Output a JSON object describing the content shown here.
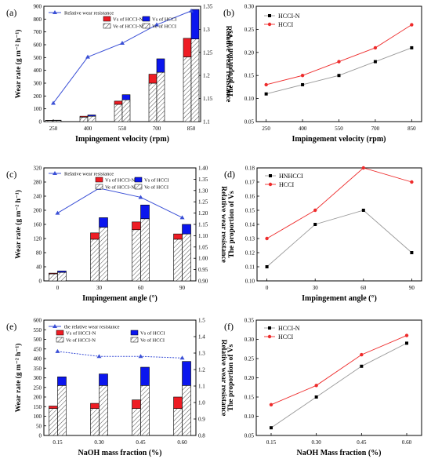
{
  "panels": [
    {
      "label": "(a)"
    },
    {
      "label": "(b)"
    },
    {
      "label": "(c)"
    },
    {
      "label": "(d)"
    },
    {
      "label": "(e)"
    },
    {
      "label": "(f)"
    }
  ],
  "colors": {
    "red": "#ee1c24",
    "blue": "#0b16ee",
    "line_blue": "#3a4fd6",
    "black": "#000000",
    "light_red": "#ee2b2b",
    "gray": "#999999"
  },
  "chart_data": [
    {
      "id": "a",
      "type": "bar+line",
      "xlabel": "Impingement velocity (rpm)",
      "ylabel": "Wear rate (g m⁻² h⁻¹)",
      "y2label": "Relative wear resistance",
      "categories": [
        "250",
        "400",
        "550",
        "700",
        "850"
      ],
      "ylim": [
        0,
        900
      ],
      "yticks": [
        0,
        100,
        200,
        300,
        400,
        500,
        600,
        700,
        800,
        900
      ],
      "y2lim": [
        1.1,
        1.35
      ],
      "y2ticks": [
        1.1,
        1.15,
        1.2,
        1.25,
        1.3,
        1.35
      ],
      "legend": {
        "line": "Relative wear resistance",
        "vs_n": "Vs of HCCI-N",
        "ve_n": "Ve of HCCI-N",
        "vs_h": "Vs of HCCI",
        "ve_h": "Ve of HCCI"
      },
      "series": [
        {
          "name": "Ve of HCCI-N",
          "values": [
            8,
            35,
            135,
            300,
            505
          ]
        },
        {
          "name": "Vs of HCCI-N",
          "values": [
            2,
            7,
            25,
            70,
            145
          ]
        },
        {
          "name": "Ve of HCCI",
          "values": [
            9,
            42,
            170,
            385,
            645
          ]
        },
        {
          "name": "Vs of HCCI",
          "values": [
            2,
            10,
            40,
            105,
            230
          ]
        },
        {
          "name": "Relative wear resistance",
          "values": [
            1.14,
            1.24,
            1.27,
            1.31,
            1.34
          ]
        }
      ]
    },
    {
      "id": "b",
      "type": "line",
      "xlabel": "Impingement velocity (rpm)",
      "ylabel": "The proportion of  Vs",
      "categories": [
        "250",
        "400",
        "550",
        "700",
        "850"
      ],
      "ylim": [
        0.05,
        0.3
      ],
      "yticks": [
        "0.05",
        "0.10",
        "0.15",
        "0.20",
        "0.25",
        "0.30"
      ],
      "series": [
        {
          "name": "HCCI-N",
          "values": [
            0.11,
            0.13,
            0.15,
            0.18,
            0.21
          ]
        },
        {
          "name": "HCCI",
          "values": [
            0.13,
            0.15,
            0.18,
            0.21,
            0.26
          ]
        }
      ]
    },
    {
      "id": "c",
      "type": "bar+line",
      "xlabel": "Impingement angle (°)",
      "ylabel": "Wear rate (g m⁻² h⁻¹)",
      "y2label": "Relative wear resistance",
      "categories": [
        "0",
        "30",
        "60",
        "90"
      ],
      "ylim": [
        0,
        320
      ],
      "yticks": [
        0,
        40,
        80,
        120,
        160,
        200,
        240,
        280,
        320
      ],
      "y2lim": [
        0.9,
        1.4
      ],
      "y2ticks": [
        "0.90",
        "0.95",
        "1.00",
        "1.05",
        "1.10",
        "1.15",
        "1.20",
        "1.25",
        "1.30",
        "1.35",
        "1.40"
      ],
      "legend": {
        "line": "Relative wear resistance",
        "vs_n": "Vs of HCCI-N",
        "ve_n": "Ve of HCCI-N",
        "vs_h": "Vs of HCCI",
        "ve_h": "Ve of HCCI"
      },
      "series": [
        {
          "name": "Ve of HCCI-N",
          "values": [
            20,
            118,
            145,
            118
          ]
        },
        {
          "name": "Vs of HCCI-N",
          "values": [
            2,
            18,
            22,
            15
          ]
        },
        {
          "name": "Ve of HCCI",
          "values": [
            24,
            152,
            176,
            133
          ]
        },
        {
          "name": "Vs of HCCI",
          "values": [
            4,
            27,
            39,
            27
          ]
        },
        {
          "name": "Relative wear resistance",
          "values": [
            1.2,
            1.31,
            1.27,
            1.18
          ]
        }
      ]
    },
    {
      "id": "d",
      "type": "line",
      "xlabel": "Impingement angle (°)",
      "ylabel": "The proportion of  Vs",
      "categories": [
        "0",
        "30",
        "60",
        "90"
      ],
      "ylim": [
        0.1,
        0.18
      ],
      "yticks": [
        "0.10",
        "0.11",
        "0.12",
        "0.13",
        "0.14",
        "0.15",
        "0.16",
        "0.17",
        "0.18"
      ],
      "series": [
        {
          "name": "HNHCCI",
          "values": [
            0.11,
            0.14,
            0.15,
            0.12
          ]
        },
        {
          "name": "HCCI",
          "values": [
            0.13,
            0.15,
            0.18,
            0.17
          ]
        }
      ]
    },
    {
      "id": "e",
      "type": "bar+line",
      "xlabel": "NaOH mass fraction (%)",
      "ylabel": "Wear rate (g m⁻² h⁻¹)",
      "y2label": "Relative wear resistance",
      "categories": [
        "0.15",
        "0.30",
        "0.45",
        "0.60"
      ],
      "ylim": [
        0,
        600
      ],
      "yticks": [
        0,
        50,
        100,
        150,
        200,
        250,
        300,
        350,
        400,
        450,
        500,
        550,
        600
      ],
      "y2lim": [
        0.8,
        1.5
      ],
      "y2ticks": [
        "0.8",
        "0.9",
        "1.0",
        "1.1",
        "1.2",
        "1.3",
        "1.4",
        "1.5"
      ],
      "legend": {
        "line": "the relative wear resistance",
        "vs_n": "Vs of HCCI-N",
        "ve_n": "Ve of HCCI-N",
        "vs_h": "Vs of HCCI",
        "ve_h": "Ve of HCCI"
      },
      "series": [
        {
          "name": "Ve of HCCI-N",
          "values": [
            140,
            140,
            140,
            140
          ]
        },
        {
          "name": "Vs of HCCI-N",
          "values": [
            13,
            27,
            45,
            60
          ]
        },
        {
          "name": "Ve of HCCI",
          "values": [
            260,
            260,
            260,
            260
          ]
        },
        {
          "name": "Vs of HCCI",
          "values": [
            45,
            60,
            95,
            125
          ]
        },
        {
          "name": "the relative wear resistance",
          "values": [
            1.31,
            1.28,
            1.28,
            1.27
          ]
        }
      ]
    },
    {
      "id": "f",
      "type": "line",
      "xlabel": "NaOH Mass fraction (%)",
      "ylabel": "The proportion of  Vs",
      "categories": [
        "0.15",
        "0.30",
        "0.45",
        "0.60"
      ],
      "ylim": [
        0.05,
        0.35
      ],
      "yticks": [
        "0.05",
        "0.10",
        "0.15",
        "0.20",
        "0.25",
        "0.30",
        "0.35"
      ],
      "series": [
        {
          "name": "HCCI-N",
          "values": [
            0.07,
            0.15,
            0.23,
            0.29
          ]
        },
        {
          "name": "HCCI",
          "values": [
            0.13,
            0.18,
            0.26,
            0.31
          ]
        }
      ]
    }
  ]
}
